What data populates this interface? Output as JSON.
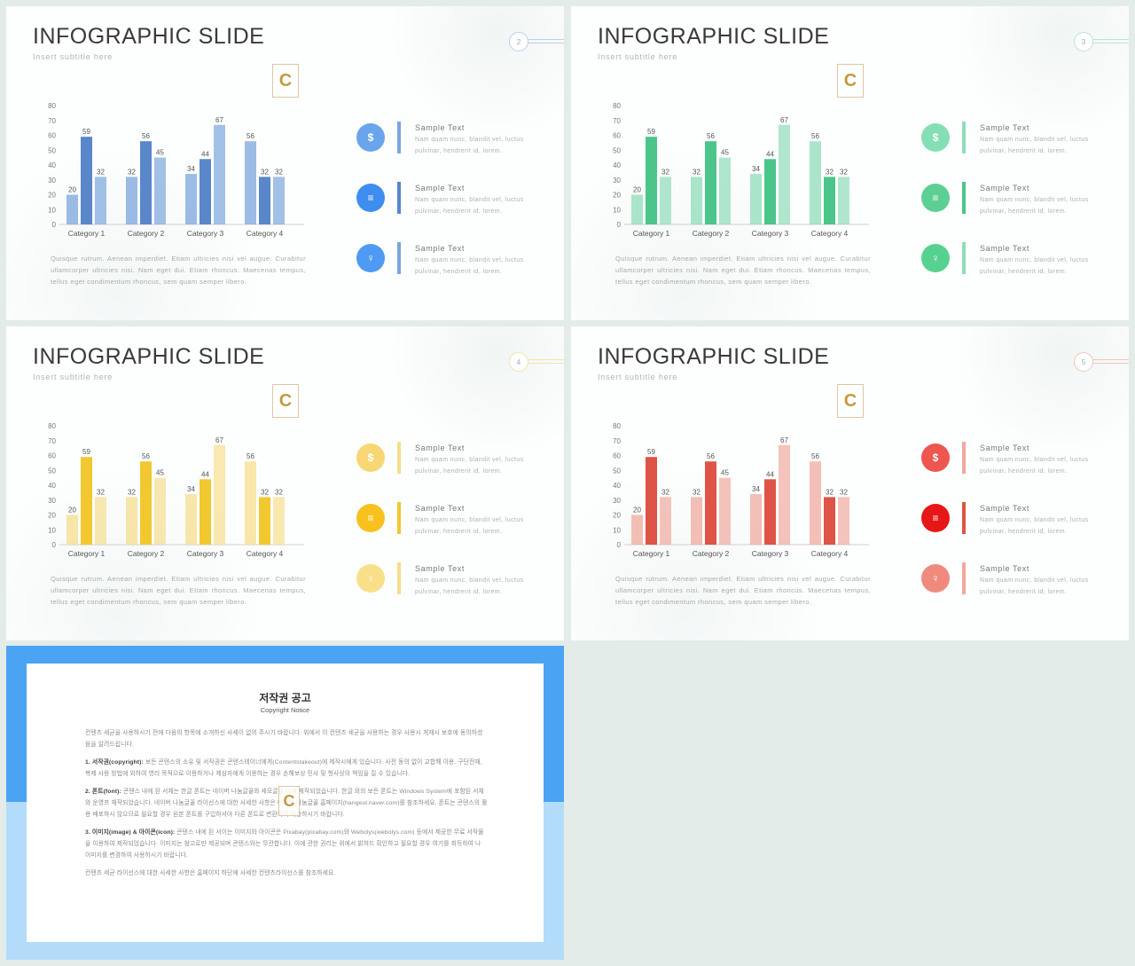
{
  "slides": [
    {
      "title": "INFOGRAPHIC SLIDE",
      "subtitle": "Insert  subtitle  here",
      "page": "2",
      "accent": "#7ba6dd",
      "dark": "#5987c9",
      "pageColor": "#bcd0e6",
      "iconBg": [
        "#6aa5ec",
        "#3e8ef0",
        "#4f9af2"
      ]
    },
    {
      "title": "INFOGRAPHIC SLIDE",
      "subtitle": "Insert  subtitle  here",
      "page": "3",
      "accent": "#8fdcb8",
      "dark": "#4cc58a",
      "pageColor": "#bfe4d3",
      "iconBg": [
        "#86dfb4",
        "#5ccf95",
        "#57d18f"
      ]
    },
    {
      "title": "INFOGRAPHIC SLIDE",
      "subtitle": "Insert  subtitle  here",
      "page": "4",
      "accent": "#f6de8e",
      "dark": "#f2c830",
      "pageColor": "#f3e4b0",
      "iconBg": [
        "#f7d775",
        "#f7c21e",
        "#f9df88"
      ]
    },
    {
      "title": "INFOGRAPHIC SLIDE",
      "subtitle": "Insert  subtitle  here",
      "page": "5",
      "accent": "#f0a99e",
      "dark": "#de5446",
      "pageColor": "#f1c5bc",
      "iconBg": [
        "#ee5650",
        "#e81717",
        "#f08a7f"
      ]
    }
  ],
  "chart_data": {
    "type": "bar",
    "categories": [
      "Category 1",
      "Category 2",
      "Category 3",
      "Category 4"
    ],
    "series": [
      {
        "values": [
          20,
          32,
          34,
          56
        ]
      },
      {
        "values": [
          59,
          56,
          44,
          32
        ]
      },
      {
        "values": [
          32,
          45,
          67,
          32
        ]
      }
    ],
    "ylim": [
      0,
      80
    ],
    "yticks": [
      "0",
      "10",
      "20",
      "30",
      "40",
      "50",
      "60",
      "70",
      "80"
    ],
    "data_labels": true
  },
  "description": "Quisque  rutrum.  Aenean  imperdiet.  Etiam  ultricies  nisi  vel  augue.  Curabitur  ullamcorper  ultricies  nisi.  Nam  eget  dui.  Etiam  rhoncus.  Maecenas  tempus,  tellus  eget  condimentum  rhoncus,  sem  quam  semper  libero.",
  "items": [
    {
      "title": "Sample  Text",
      "text": "Nam  quam  nunc,  blandit  vel,  luctus  pulvinar,  hendrerit  id,  lorem.",
      "icon": "money-bag-icon",
      "glyph": "$"
    },
    {
      "title": "Sample  Text",
      "text": "Nam  quam  nunc,  blandit  vel,  luctus  pulvinar,  hendrerit  id,  lorem.",
      "icon": "coins-icon",
      "glyph": "≡"
    },
    {
      "title": "Sample  Text",
      "text": "Nam  quam  nunc,  blandit  vel,  luctus  pulvinar,  hendrerit  id,  lorem.",
      "icon": "lightbulb-icon",
      "glyph": "♀"
    }
  ],
  "watermark": "C",
  "copyright": {
    "title": "저작권 공고",
    "subtitle": "Copyright Notice",
    "intro": "컨텐츠 세균을 사용하시기 전에 다음의 항목에 소개하신 사세이 없어 주시기 바랍니다. 위에서 이 컨텐츠 세균을 사용하는 경우 사용시 게재시 보호에 동의하셨음을 알려드립니다.",
    "p1_head": "1. 서작권(copyright):",
    "p1": " 보든 콘텐스의 소유 및 서작권은 콘텐스테이너에게(Contentstakeout)에 제작시에게 있습니다. 사전 동의 없이 교합해 이용, 구단전재, 복제 사용 방법에 외하여 영리 목적으로 이용하거나 제삼자에게 이용하는 경우 손해보상 민사 및 형사상의 책임을 질 수 있습니다.",
    "p2_head": "2. 폰트(font):",
    "p2": " 콘텐스 내에 된 서체는 한글 폰트는 네이버 나눔글꼴와 세모글꼴 아래 제작되었습니다. 한글 외의 보든 폰트는 Windows System에 포함된 서체와 운영프 체작되었습니다. 네이버 나눔글꼴 라이선스에 대한 사세한 사항은 네이버 나눔글꼴 홈페이지(hangeul.naver.com)를 참조하세요. 폰트는 콘텐스의 활용 배포하시 않으므로 필요할 경우 원본 폰트를 구입하셔야 다른 폰트로 변환하여 사용하시기 바랍니다.",
    "p3_head": "3. 이미지(image) & 아이콘(icon):",
    "p3": " 콘텐스 내에 된 서이는 이미지와 아이콘은 Pixabay(pixabay.com)와 Webolys(webolys.com) 등에서 제공한 무료 서작물을 이용하여 제작되었습니다. 이미지는 참고로만 제공되며 콘텐스와는 무관합니다. 이에 관한 권리는 위에서 밝혀드 확인하고 필요할 경우 여기를 취득하여 나 이미지를 변경하여 사용하시기 바랍니다.",
    "outro": "컨텐츠 세균 라이선스에 대한 사세한 사항은 홈페이지 하단에 사세한 컨텐츠라이선스를 참조하세요."
  }
}
